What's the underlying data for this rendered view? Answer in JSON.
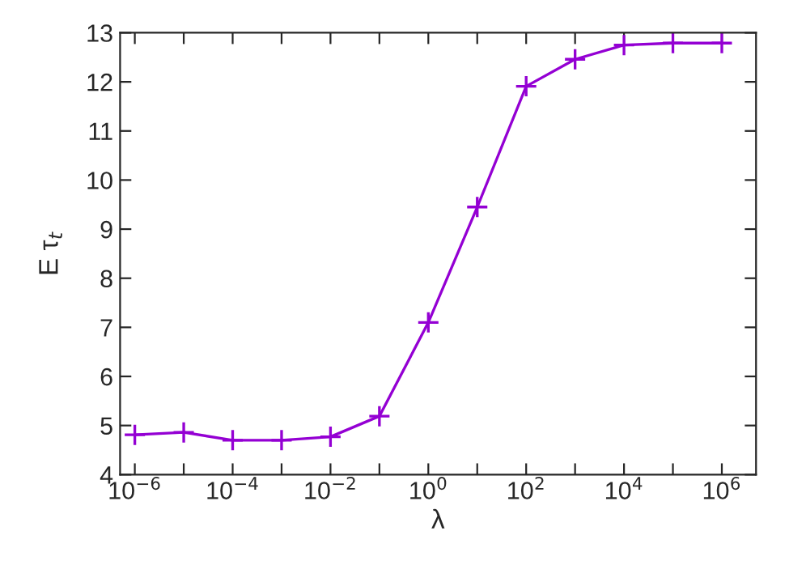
{
  "chart_data": {
    "type": "line",
    "xlabel": "λ",
    "ylabel": "E τ$_{t}$",
    "log": "x",
    "marker": "cross",
    "line_style": "solid",
    "grid": false,
    "x": [
      1e-06,
      1e-05,
      0.0001,
      0.001,
      0.01,
      0.1,
      1,
      10,
      100,
      1000,
      10000,
      100000,
      1000000
    ],
    "series": [
      {
        "color": "#9400d3",
        "values": [
          4.81,
          4.86,
          4.7,
          4.7,
          4.77,
          5.19,
          7.1,
          9.45,
          11.91,
          12.46,
          12.75,
          12.79,
          12.79
        ]
      }
    ],
    "xlim": [
      5e-07,
      5000000.0
    ],
    "xticks": [
      {
        "value": 1e-06,
        "label": "10$^{−6}$"
      },
      {
        "value": 1e-05,
        "label": null
      },
      {
        "value": 0.0001,
        "label": "10$^{−4}$"
      },
      {
        "value": 0.001,
        "label": null
      },
      {
        "value": 0.01,
        "label": "10$^{−2}$"
      },
      {
        "value": 0.1,
        "label": null
      },
      {
        "value": 1,
        "label": "10$^{0}$"
      },
      {
        "value": 10,
        "label": null
      },
      {
        "value": 100,
        "label": "10$^{2}$"
      },
      {
        "value": 1000,
        "label": null
      },
      {
        "value": 10000,
        "label": "10$^{4}$"
      },
      {
        "value": 100000,
        "label": null
      },
      {
        "value": 1000000,
        "label": "10$^{6}$"
      }
    ],
    "ylim": [
      4,
      13
    ],
    "yticks": [
      4,
      5,
      6,
      7,
      8,
      9,
      10,
      11,
      12,
      13
    ]
  }
}
